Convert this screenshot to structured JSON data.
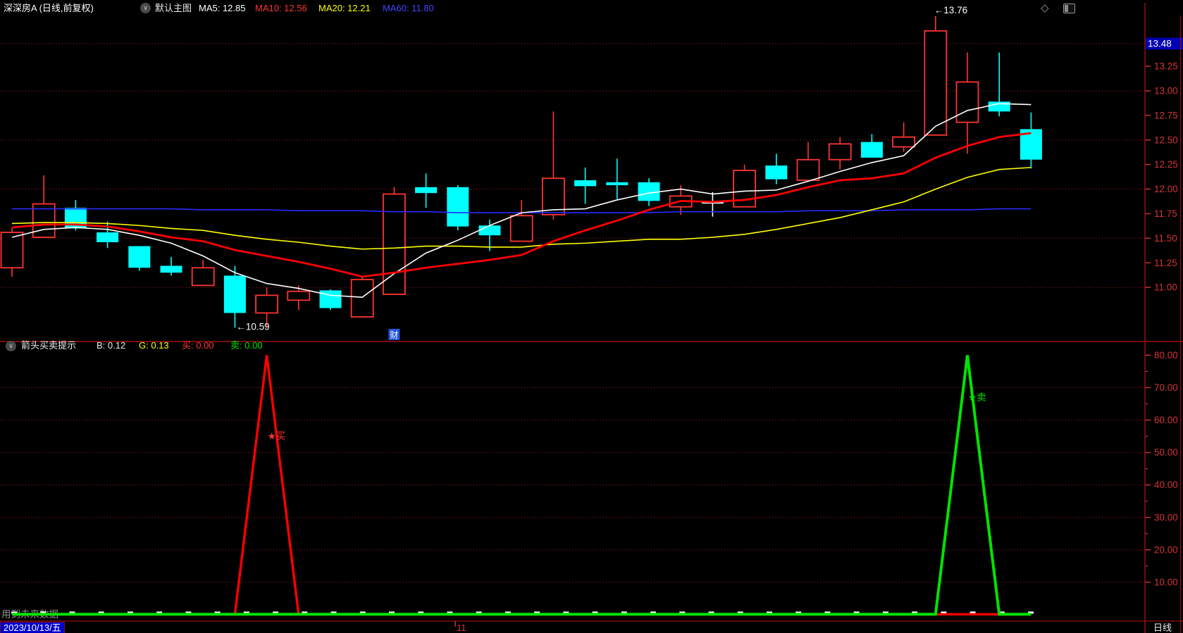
{
  "header": {
    "title": "深深房A (日线,前复权)",
    "overlay": "默认主图",
    "ma5": "MA5: 12.85",
    "ma10": "MA10: 12.56",
    "ma20": "MA20: 12.21",
    "ma60": "MA60: 11.80"
  },
  "panel2_header": {
    "name": "箭头买卖提示",
    "b": "B: 0.12",
    "g": "G: 0.13",
    "buy": "买: 0.00",
    "sell": "卖: 0.00"
  },
  "statusbar": {
    "clipped_year": "202",
    "date": "2023/10/13/五",
    "month": "11",
    "period": "日线"
  },
  "annotations": {
    "high": "←13.76",
    "low": "←10.59",
    "buy_marker": "★买",
    "sell_marker": "★卖",
    "flag": "财",
    "future_warning": "用到未来数据",
    "last_price": "13.48"
  },
  "icons": {
    "chevron_down": "∨",
    "diamond": "◇"
  },
  "colors": {
    "up": "#ff3434",
    "down": "#00ffff",
    "flat": "#ffffff",
    "ma5": "#ffffff",
    "ma10": "#ff0000",
    "ma20": "#ffff00",
    "ma60": "#2a2aff",
    "axis_text": "#d43434",
    "grid": "#a32020",
    "border": "#a01010",
    "border_dark": "#7a0c0c",
    "ind_red": "#ff0000",
    "ind_green": "#00e400",
    "price_box_bg": "#0000b4",
    "flag_bg": "#2255dd",
    "dash": "#ffffff",
    "warn": "#909090"
  },
  "chart_data": [
    {
      "type": "candlestick",
      "title": "深深房A 日线 前复权",
      "n_bars": 33,
      "ylim": [
        10.45,
        13.8
      ],
      "y_ticks": [
        13.25,
        13.0,
        12.75,
        12.5,
        12.25,
        12.0,
        11.75,
        11.5,
        11.25,
        11.0
      ],
      "grid_levels": [
        13.48,
        13.0,
        12.5,
        12.0,
        11.5,
        11.0
      ],
      "last_price": 13.48,
      "ohlc": [
        [
          11.2,
          11.6,
          11.11,
          11.56
        ],
        [
          11.51,
          12.14,
          11.51,
          11.85
        ],
        [
          11.81,
          11.89,
          11.58,
          11.6
        ],
        [
          11.56,
          11.67,
          11.4,
          11.46
        ],
        [
          11.42,
          11.42,
          11.17,
          11.2
        ],
        [
          11.22,
          11.31,
          11.12,
          11.15
        ],
        [
          11.02,
          11.28,
          11.02,
          11.2
        ],
        [
          11.12,
          11.22,
          10.59,
          10.74
        ],
        [
          10.74,
          11.0,
          10.6,
          10.92
        ],
        [
          10.87,
          11.02,
          10.77,
          10.96
        ],
        [
          10.97,
          10.98,
          10.77,
          10.79
        ],
        [
          10.7,
          11.12,
          10.7,
          11.08
        ],
        [
          10.93,
          12.02,
          10.93,
          11.95
        ],
        [
          12.02,
          12.16,
          11.81,
          11.96
        ],
        [
          12.02,
          12.04,
          11.58,
          11.62
        ],
        [
          11.63,
          11.69,
          11.37,
          11.53
        ],
        [
          11.47,
          11.89,
          11.47,
          11.73
        ],
        [
          11.74,
          12.79,
          11.69,
          12.11
        ],
        [
          12.09,
          12.22,
          11.85,
          12.03
        ],
        [
          12.07,
          12.31,
          11.9,
          12.04
        ],
        [
          12.07,
          12.11,
          11.83,
          11.88
        ],
        [
          11.82,
          12.04,
          11.74,
          11.93
        ],
        [
          11.86,
          11.97,
          11.72,
          11.86
        ],
        [
          11.82,
          12.25,
          11.82,
          12.19
        ],
        [
          12.24,
          12.36,
          12.05,
          12.1
        ],
        [
          12.09,
          12.48,
          12.09,
          12.3
        ],
        [
          12.3,
          12.53,
          12.2,
          12.46
        ],
        [
          12.48,
          12.56,
          12.32,
          12.32
        ],
        [
          12.43,
          12.68,
          12.38,
          12.53
        ],
        [
          12.55,
          13.76,
          12.55,
          13.61
        ],
        [
          12.68,
          13.39,
          12.36,
          13.09
        ],
        [
          12.89,
          13.39,
          12.74,
          12.79
        ],
        [
          12.61,
          12.78,
          12.21,
          12.3
        ]
      ],
      "series": [
        {
          "name": "MA60",
          "color_key": "ma60",
          "width": 1.6,
          "values": [
            11.8,
            11.8,
            11.8,
            11.8,
            11.8,
            11.8,
            11.79,
            11.79,
            11.79,
            11.78,
            11.78,
            11.78,
            11.77,
            11.77,
            11.76,
            11.76,
            11.76,
            11.76,
            11.76,
            11.76,
            11.76,
            11.77,
            11.77,
            11.77,
            11.77,
            11.78,
            11.78,
            11.78,
            11.79,
            11.79,
            11.79,
            11.8,
            11.8
          ]
        },
        {
          "name": "MA20",
          "color_key": "ma20",
          "width": 1.6,
          "values": [
            11.65,
            11.66,
            11.66,
            11.65,
            11.63,
            11.6,
            11.58,
            11.53,
            11.49,
            11.46,
            11.42,
            11.39,
            11.4,
            11.42,
            11.42,
            11.41,
            11.41,
            11.44,
            11.45,
            11.47,
            11.49,
            11.49,
            11.51,
            11.54,
            11.59,
            11.65,
            11.71,
            11.79,
            11.87,
            12.0,
            12.12,
            12.2,
            12.22
          ]
        },
        {
          "name": "MA5",
          "color_key": "ma5",
          "width": 1.6,
          "values": [
            11.51,
            11.59,
            11.61,
            11.59,
            11.53,
            11.45,
            11.32,
            11.15,
            11.04,
            10.99,
            10.92,
            10.9,
            11.14,
            11.35,
            11.48,
            11.63,
            11.76,
            11.79,
            11.8,
            11.89,
            11.96,
            12.0,
            11.95,
            11.98,
            11.99,
            12.08,
            12.18,
            12.27,
            12.34,
            12.64,
            12.8,
            12.87,
            12.86
          ]
        },
        {
          "name": "MA10",
          "color_key": "ma10",
          "width": 2.8,
          "values": [
            11.61,
            11.64,
            11.64,
            11.62,
            11.57,
            11.51,
            11.47,
            11.38,
            11.32,
            11.26,
            11.19,
            11.11,
            11.15,
            11.2,
            11.24,
            11.28,
            11.33,
            11.47,
            11.58,
            11.68,
            11.79,
            11.88,
            11.87,
            11.89,
            11.94,
            12.02,
            12.09,
            12.11,
            12.16,
            12.32,
            12.44,
            12.53,
            12.57
          ]
        }
      ],
      "point_annotations": [
        {
          "key": "high",
          "bar": 29,
          "price": 13.76
        },
        {
          "key": "low",
          "bar": 7,
          "price": 10.59
        }
      ],
      "flag_bar": 12
    },
    {
      "type": "line",
      "name": "箭头买卖提示",
      "ylim": [
        0,
        85.5
      ],
      "y_ticks": [
        80,
        70,
        60,
        50,
        40,
        30,
        20,
        10
      ],
      "grid_levels": [
        70,
        60,
        50,
        40,
        30,
        20,
        10
      ],
      "minor_ticks": [
        75,
        65,
        55,
        45,
        35,
        25,
        15
      ],
      "series": [
        {
          "name": "B",
          "color_key": "ind_red",
          "width": 3.4,
          "values": [
            0.12,
            0.12,
            0.12,
            0.12,
            0.12,
            0.12,
            0.12,
            0.12,
            80,
            0.12,
            0.12,
            0.12,
            0.12,
            0.12,
            0.12,
            0.12,
            0.12,
            0.12,
            0.12,
            0.12,
            0.12,
            0.12,
            0.12,
            0.12,
            0.12,
            0.12,
            0.12,
            0.12,
            0.12,
            0.12,
            0.12,
            0.12,
            0.12
          ]
        },
        {
          "name": "G",
          "color_key": "ind_green",
          "width": 4,
          "values": [
            0.13,
            0.13,
            0.13,
            0.13,
            0.13,
            0.13,
            0.13,
            0.13,
            0.13,
            0.13,
            0.13,
            0.13,
            0.13,
            0.13,
            0.13,
            0.13,
            0.13,
            0.13,
            0.13,
            0.13,
            0.13,
            0.13,
            0.13,
            0.13,
            0.13,
            0.13,
            0.13,
            0.13,
            0.13,
            0.13,
            80,
            0.13,
            0.13
          ]
        }
      ],
      "markers": [
        {
          "key": "buy_marker",
          "bar": 8,
          "value": 54,
          "color_key": "up"
        },
        {
          "key": "sell_marker",
          "bar": 30,
          "value": 66,
          "color_key": "ind_green"
        }
      ]
    }
  ]
}
